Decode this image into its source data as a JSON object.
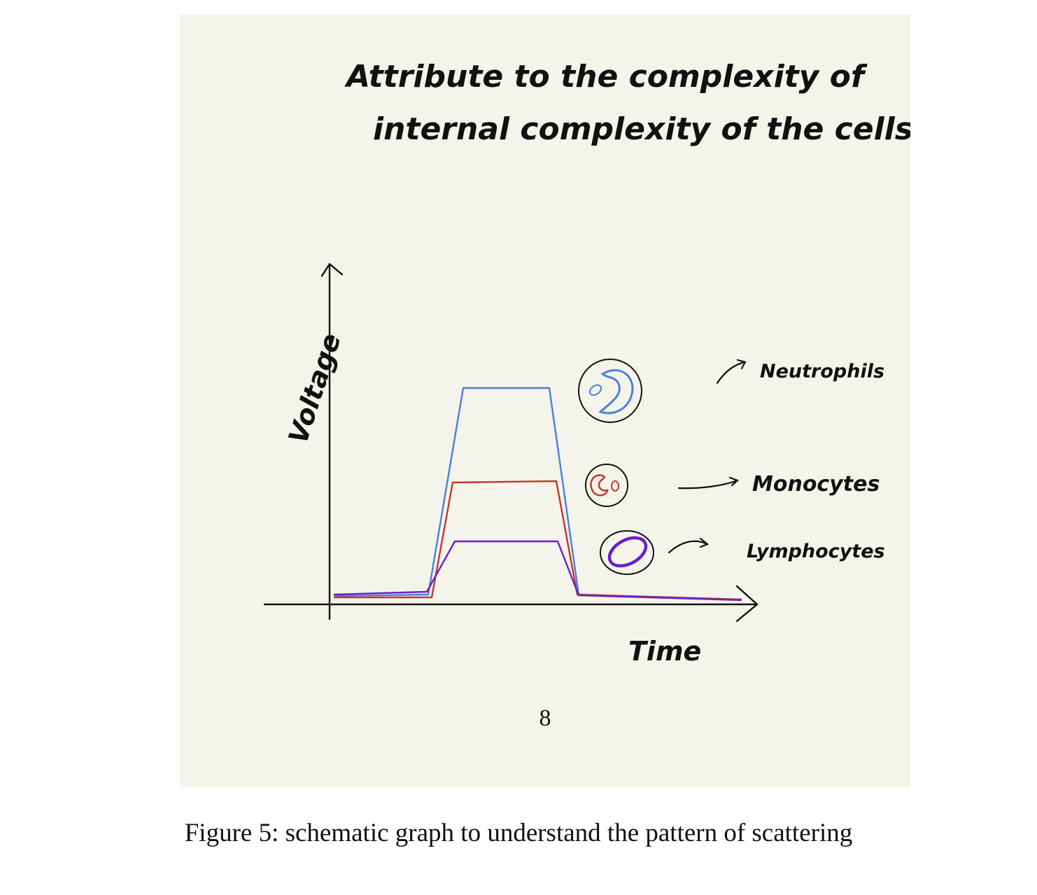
{
  "figure": {
    "title_lines": [
      "Attribute to the complexity of",
      "internal complexity of the cells."
    ],
    "y_axis_label": "Voltage",
    "x_axis_label": "Time",
    "page_number": "8",
    "caption": "Figure 5: schematic graph to understand the pattern of scattering"
  },
  "cells": [
    {
      "name": "Neutrophils",
      "color": "#4a7fe0"
    },
    {
      "name": "Monocytes",
      "color": "#c0392b"
    },
    {
      "name": "Lymphocytes",
      "color": "#6a1fd0"
    }
  ],
  "colors": {
    "background": "#f5f4ea",
    "ink": "#111111"
  }
}
